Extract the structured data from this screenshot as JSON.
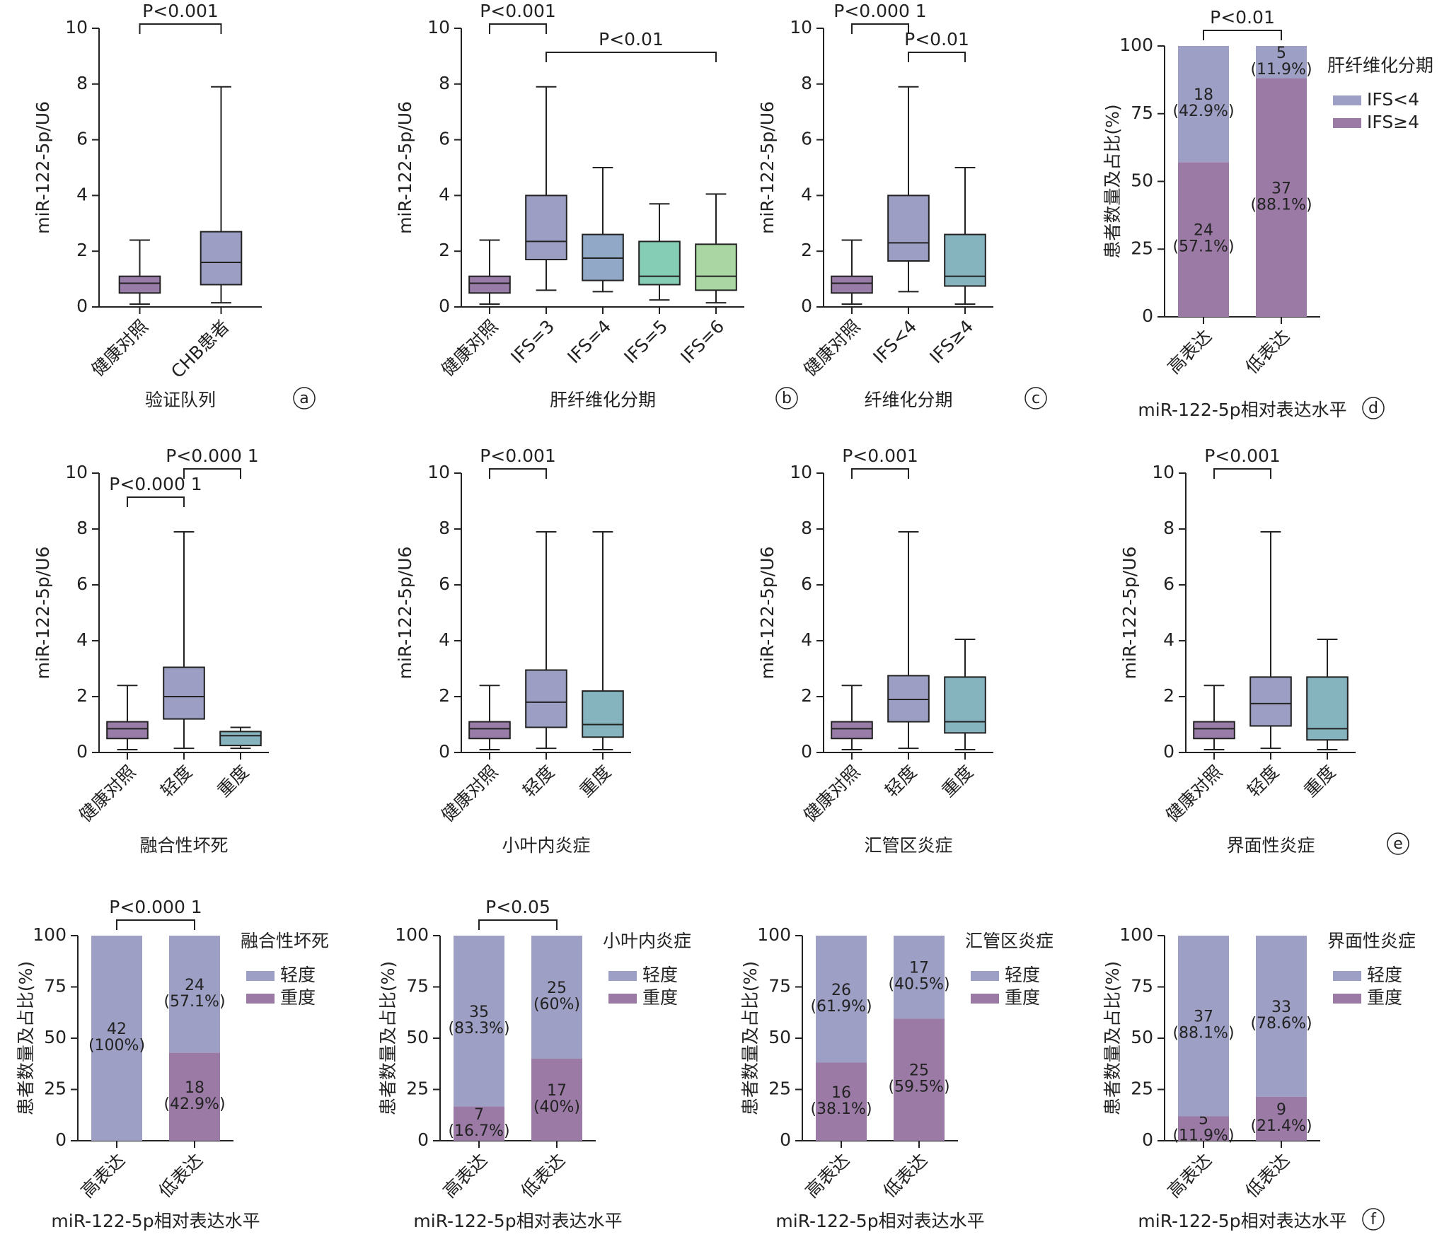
{
  "chart_data": [
    {
      "type": "box",
      "panel": "a",
      "xlabel": "验证队列",
      "ylabel": "miR-122-5p/U6",
      "categories": [
        "健康对照",
        "CHB患者"
      ],
      "boxes": [
        {
          "min": 0.1,
          "q1": 0.5,
          "median": 0.85,
          "q3": 1.1,
          "max": 2.4
        },
        {
          "min": 0.15,
          "q1": 0.8,
          "median": 1.6,
          "q3": 2.7,
          "max": 7.9
        }
      ],
      "colors": [
        "#9a7ca8",
        "#9c9ec4"
      ],
      "ylim": [
        0,
        10
      ],
      "yticks": [
        0,
        2,
        4,
        6,
        8,
        10
      ],
      "annotations": [
        {
          "label": "P<0.001",
          "from": 0,
          "to": 1
        }
      ]
    },
    {
      "type": "box",
      "panel": "b",
      "xlabel": "肝纤维化分期",
      "ylabel": "miR-122-5p/U6",
      "categories": [
        "健康对照",
        "IFS=3",
        "IFS=4",
        "IFS=5",
        "IFS=6"
      ],
      "boxes": [
        {
          "min": 0.1,
          "q1": 0.5,
          "median": 0.85,
          "q3": 1.1,
          "max": 2.4
        },
        {
          "min": 0.6,
          "q1": 1.7,
          "median": 2.35,
          "q3": 4.0,
          "max": 7.9
        },
        {
          "min": 0.55,
          "q1": 0.95,
          "median": 1.75,
          "q3": 2.6,
          "max": 5.0
        },
        {
          "min": 0.25,
          "q1": 0.8,
          "median": 1.1,
          "q3": 2.35,
          "max": 3.7
        },
        {
          "min": 0.15,
          "q1": 0.6,
          "median": 1.1,
          "q3": 2.25,
          "max": 4.05
        }
      ],
      "colors": [
        "#9a7ca8",
        "#9c9ec4",
        "#91a8c6",
        "#85cdb4",
        "#a9d6a2"
      ],
      "ylim": [
        0,
        10
      ],
      "yticks": [
        0,
        2,
        4,
        6,
        8,
        10
      ],
      "annotations": [
        {
          "label": "P<0.001",
          "from": 0,
          "to": 1
        },
        {
          "label": "P<0.01",
          "from": 1,
          "to": 4
        }
      ]
    },
    {
      "type": "box",
      "panel": "c",
      "xlabel": "纤维化分期",
      "ylabel": "miR-122-5p/U6",
      "categories": [
        "健康对照",
        "IFS<4",
        "IFS≥4"
      ],
      "boxes": [
        {
          "min": 0.1,
          "q1": 0.5,
          "median": 0.85,
          "q3": 1.1,
          "max": 2.4
        },
        {
          "min": 0.55,
          "q1": 1.65,
          "median": 2.3,
          "q3": 4.0,
          "max": 7.9
        },
        {
          "min": 0.1,
          "q1": 0.75,
          "median": 1.1,
          "q3": 2.6,
          "max": 5.0
        }
      ],
      "colors": [
        "#9a7ca8",
        "#9c9ec4",
        "#85b3be"
      ],
      "ylim": [
        0,
        10
      ],
      "yticks": [
        0,
        2,
        4,
        6,
        8,
        10
      ],
      "annotations": [
        {
          "label": "P<0.000 1",
          "from": 0,
          "to": 1
        },
        {
          "label": "P<0.01",
          "from": 1,
          "to": 2
        }
      ]
    },
    {
      "type": "stacked_bar",
      "panel": "d",
      "xlabel": "miR-122-5p相对表达水平",
      "ylabel": "患者数量及占比(%)",
      "legend_title": "肝纤维化分期",
      "categories": [
        "高表达",
        "低表达"
      ],
      "series": [
        {
          "name": "IFS≥4",
          "color": "#9b7ba6",
          "values": [
            57.1,
            88.1
          ],
          "counts": [
            24,
            37
          ],
          "value_labels": [
            "(57.1%)",
            "(88.1%)"
          ]
        },
        {
          "name": "IFS<4",
          "color": "#9d9fc4",
          "values": [
            42.9,
            11.9
          ],
          "counts": [
            18,
            5
          ],
          "value_labels": [
            "(42.9%)",
            "(11.9%)"
          ]
        }
      ],
      "ylim": [
        0,
        100
      ],
      "yticks": [
        0,
        25,
        50,
        75,
        100
      ],
      "annotations": [
        {
          "label": "P<0.01",
          "from": 0,
          "to": 1
        }
      ]
    },
    {
      "type": "box",
      "xlabel": "融合性坏死",
      "ylabel": "miR-122-5p/U6",
      "categories": [
        "健康对照",
        "轻度",
        "重度"
      ],
      "boxes": [
        {
          "min": 0.1,
          "q1": 0.5,
          "median": 0.85,
          "q3": 1.1,
          "max": 2.4
        },
        {
          "min": 0.15,
          "q1": 1.2,
          "median": 2.0,
          "q3": 3.05,
          "max": 7.9
        },
        {
          "min": 0.15,
          "q1": 0.25,
          "median": 0.6,
          "q3": 0.75,
          "max": 0.9
        }
      ],
      "colors": [
        "#9a7ca8",
        "#9c9ec4",
        "#85b3be"
      ],
      "ylim": [
        0,
        10
      ],
      "yticks": [
        0,
        2,
        4,
        6,
        8,
        10
      ],
      "annotations": [
        {
          "label": "P<0.000 1",
          "from": 1,
          "to": 2
        },
        {
          "label": "P<0.000 1",
          "from": 0,
          "to": 1
        }
      ]
    },
    {
      "type": "box",
      "xlabel": "小叶内炎症",
      "ylabel": "miR-122-5p/U6",
      "categories": [
        "健康对照",
        "轻度",
        "重度"
      ],
      "boxes": [
        {
          "min": 0.1,
          "q1": 0.5,
          "median": 0.85,
          "q3": 1.1,
          "max": 2.4
        },
        {
          "min": 0.15,
          "q1": 0.9,
          "median": 1.8,
          "q3": 2.95,
          "max": 7.9
        },
        {
          "min": 0.1,
          "q1": 0.55,
          "median": 1.0,
          "q3": 2.2,
          "max": 7.9
        }
      ],
      "colors": [
        "#9a7ca8",
        "#9c9ec4",
        "#85b3be"
      ],
      "ylim": [
        0,
        10
      ],
      "yticks": [
        0,
        2,
        4,
        6,
        8,
        10
      ],
      "annotations": [
        {
          "label": "P<0.001",
          "from": 0,
          "to": 1
        }
      ]
    },
    {
      "type": "box",
      "xlabel": "汇管区炎症",
      "ylabel": "miR-122-5p/U6",
      "categories": [
        "健康对照",
        "轻度",
        "重度"
      ],
      "boxes": [
        {
          "min": 0.1,
          "q1": 0.5,
          "median": 0.85,
          "q3": 1.1,
          "max": 2.4
        },
        {
          "min": 0.15,
          "q1": 1.1,
          "median": 1.9,
          "q3": 2.75,
          "max": 7.9
        },
        {
          "min": 0.1,
          "q1": 0.7,
          "median": 1.1,
          "q3": 2.7,
          "max": 4.05
        }
      ],
      "colors": [
        "#9a7ca8",
        "#9c9ec4",
        "#85b3be"
      ],
      "ylim": [
        0,
        10
      ],
      "yticks": [
        0,
        2,
        4,
        6,
        8,
        10
      ],
      "annotations": [
        {
          "label": "P<0.001",
          "from": 0,
          "to": 1
        }
      ]
    },
    {
      "type": "box",
      "panel": "e",
      "xlabel": "界面性炎症",
      "ylabel": "miR-122-5p/U6",
      "categories": [
        "健康对照",
        "轻度",
        "重度"
      ],
      "boxes": [
        {
          "min": 0.1,
          "q1": 0.5,
          "median": 0.85,
          "q3": 1.1,
          "max": 2.4
        },
        {
          "min": 0.15,
          "q1": 0.95,
          "median": 1.75,
          "q3": 2.7,
          "max": 7.9
        },
        {
          "min": 0.1,
          "q1": 0.45,
          "median": 0.85,
          "q3": 2.7,
          "max": 4.05
        }
      ],
      "colors": [
        "#9a7ca8",
        "#9c9ec4",
        "#85b3be"
      ],
      "ylim": [
        0,
        10
      ],
      "yticks": [
        0,
        2,
        4,
        6,
        8,
        10
      ],
      "annotations": [
        {
          "label": "P<0.001",
          "from": 0,
          "to": 1
        }
      ]
    },
    {
      "type": "stacked_bar",
      "xlabel": "miR-122-5p相对表达水平",
      "ylabel": "患者数量及占比(%)",
      "legend_title": "融合性坏死",
      "categories": [
        "高表达",
        "低表达"
      ],
      "series": [
        {
          "name": "重度",
          "color": "#9b7ba6",
          "values": [
            0,
            42.9
          ],
          "counts": [
            null,
            18
          ],
          "value_labels": [
            null,
            "(42.9%)"
          ]
        },
        {
          "name": "轻度",
          "color": "#9d9fc4",
          "values": [
            100,
            57.1
          ],
          "counts": [
            42,
            24
          ],
          "value_labels": [
            "(100%)",
            "(57.1%)"
          ]
        }
      ],
      "ylim": [
        0,
        100
      ],
      "yticks": [
        0,
        25,
        50,
        75,
        100
      ],
      "annotations": [
        {
          "label": "P<0.000 1",
          "from": 0,
          "to": 1
        }
      ]
    },
    {
      "type": "stacked_bar",
      "xlabel": "miR-122-5p相对表达水平",
      "ylabel": "患者数量及占比(%)",
      "legend_title": "小叶内炎症",
      "categories": [
        "高表达",
        "低表达"
      ],
      "series": [
        {
          "name": "重度",
          "color": "#9b7ba6",
          "values": [
            16.7,
            40
          ],
          "counts": [
            7,
            17
          ],
          "value_labels": [
            "(16.7%)",
            "(40%)"
          ]
        },
        {
          "name": "轻度",
          "color": "#9d9fc4",
          "values": [
            83.3,
            60
          ],
          "counts": [
            35,
            25
          ],
          "value_labels": [
            "(83.3%)",
            "(60%)"
          ]
        }
      ],
      "ylim": [
        0,
        100
      ],
      "yticks": [
        0,
        25,
        50,
        75,
        100
      ],
      "annotations": [
        {
          "label": "P<0.05",
          "from": 0,
          "to": 1
        }
      ]
    },
    {
      "type": "stacked_bar",
      "xlabel": "miR-122-5p相对表达水平",
      "ylabel": "患者数量及占比(%)",
      "legend_title": "汇管区炎症",
      "categories": [
        "高表达",
        "低表达"
      ],
      "series": [
        {
          "name": "重度",
          "color": "#9b7ba6",
          "values": [
            38.1,
            59.5
          ],
          "counts": [
            16,
            25
          ],
          "value_labels": [
            "(38.1%)",
            "(59.5%)"
          ]
        },
        {
          "name": "轻度",
          "color": "#9d9fc4",
          "values": [
            61.9,
            40.5
          ],
          "counts": [
            26,
            17
          ],
          "value_labels": [
            "(61.9%)",
            "(40.5%)"
          ]
        }
      ],
      "ylim": [
        0,
        100
      ],
      "yticks": [
        0,
        25,
        50,
        75,
        100
      ],
      "annotations": []
    },
    {
      "type": "stacked_bar",
      "panel": "f",
      "xlabel": "miR-122-5p相对表达水平",
      "ylabel": "患者数量及占比(%)",
      "legend_title": "界面性炎症",
      "categories": [
        "高表达",
        "低表达"
      ],
      "series": [
        {
          "name": "重度",
          "color": "#9b7ba6",
          "values": [
            11.9,
            21.4
          ],
          "counts": [
            5,
            9
          ],
          "value_labels": [
            "(11.9%)",
            "(21.4%)"
          ]
        },
        {
          "name": "轻度",
          "color": "#9d9fc4",
          "values": [
            88.1,
            78.6
          ],
          "counts": [
            37,
            33
          ],
          "value_labels": [
            "(88.1%)",
            "(78.6%)"
          ]
        }
      ],
      "ylim": [
        0,
        100
      ],
      "yticks": [
        0,
        25,
        50,
        75,
        100
      ],
      "annotations": []
    }
  ]
}
